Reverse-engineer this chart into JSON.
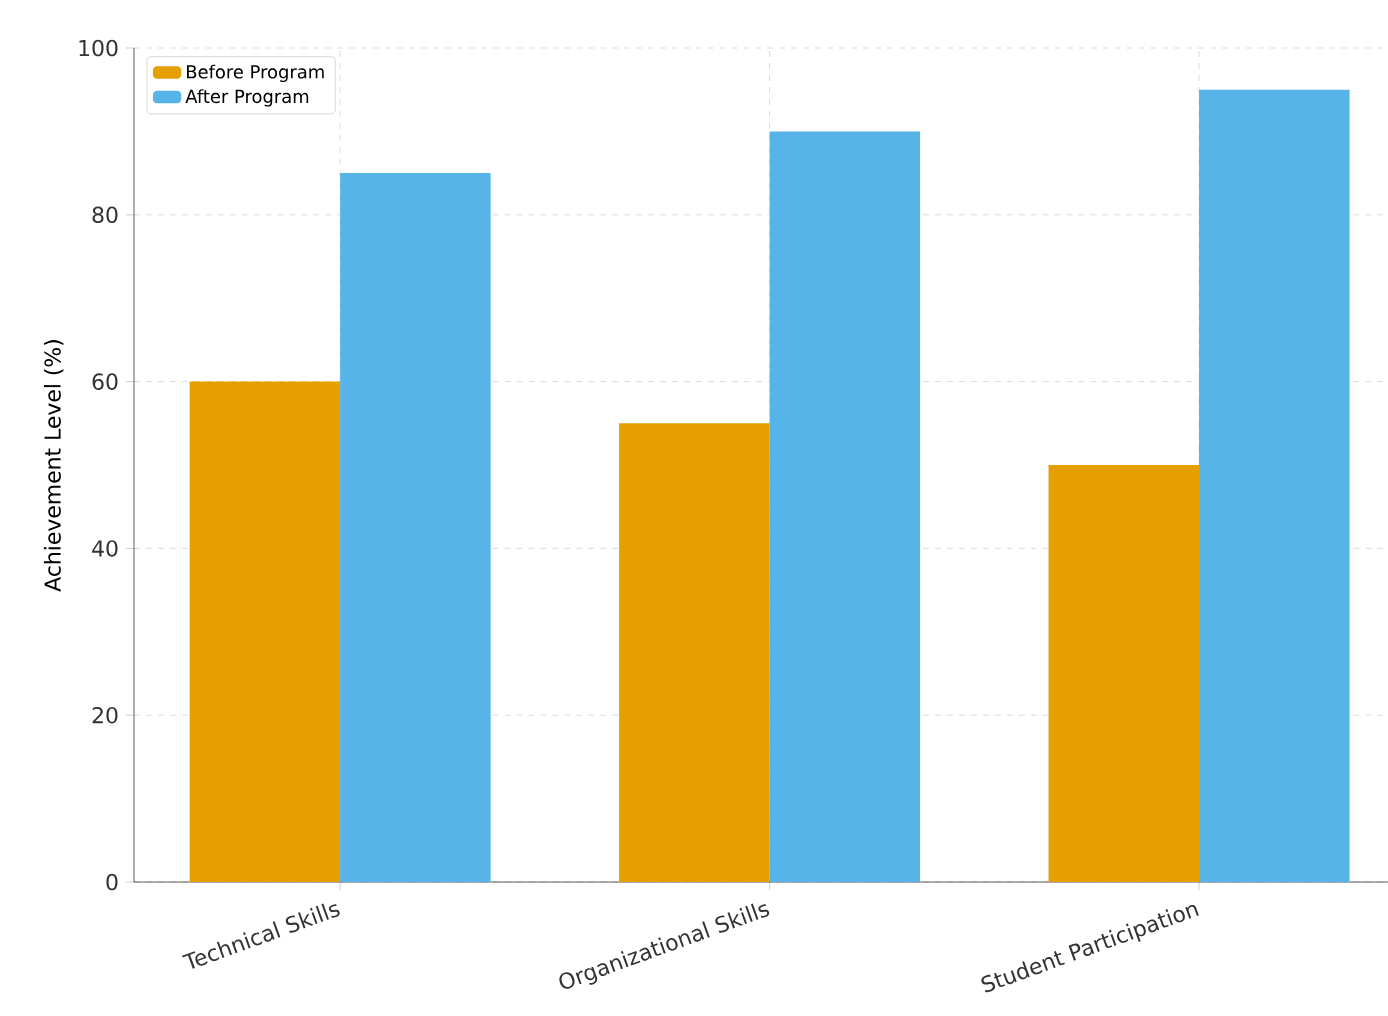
{
  "chart_data": {
    "type": "bar",
    "ylabel": "Achievement Level (%)",
    "categories": [
      "Technical Skills",
      "Organizational Skills",
      "Student Participation"
    ],
    "series": [
      {
        "name": "Before Program",
        "color": "#e69f00",
        "values": [
          60,
          55,
          50
        ]
      },
      {
        "name": "After Program",
        "color": "#56b4e9",
        "values": [
          85,
          90,
          95
        ]
      }
    ],
    "ylim": [
      0,
      100
    ],
    "yticks": [
      0,
      20,
      40,
      60,
      80,
      100
    ],
    "grid": true,
    "legend": "top left"
  }
}
